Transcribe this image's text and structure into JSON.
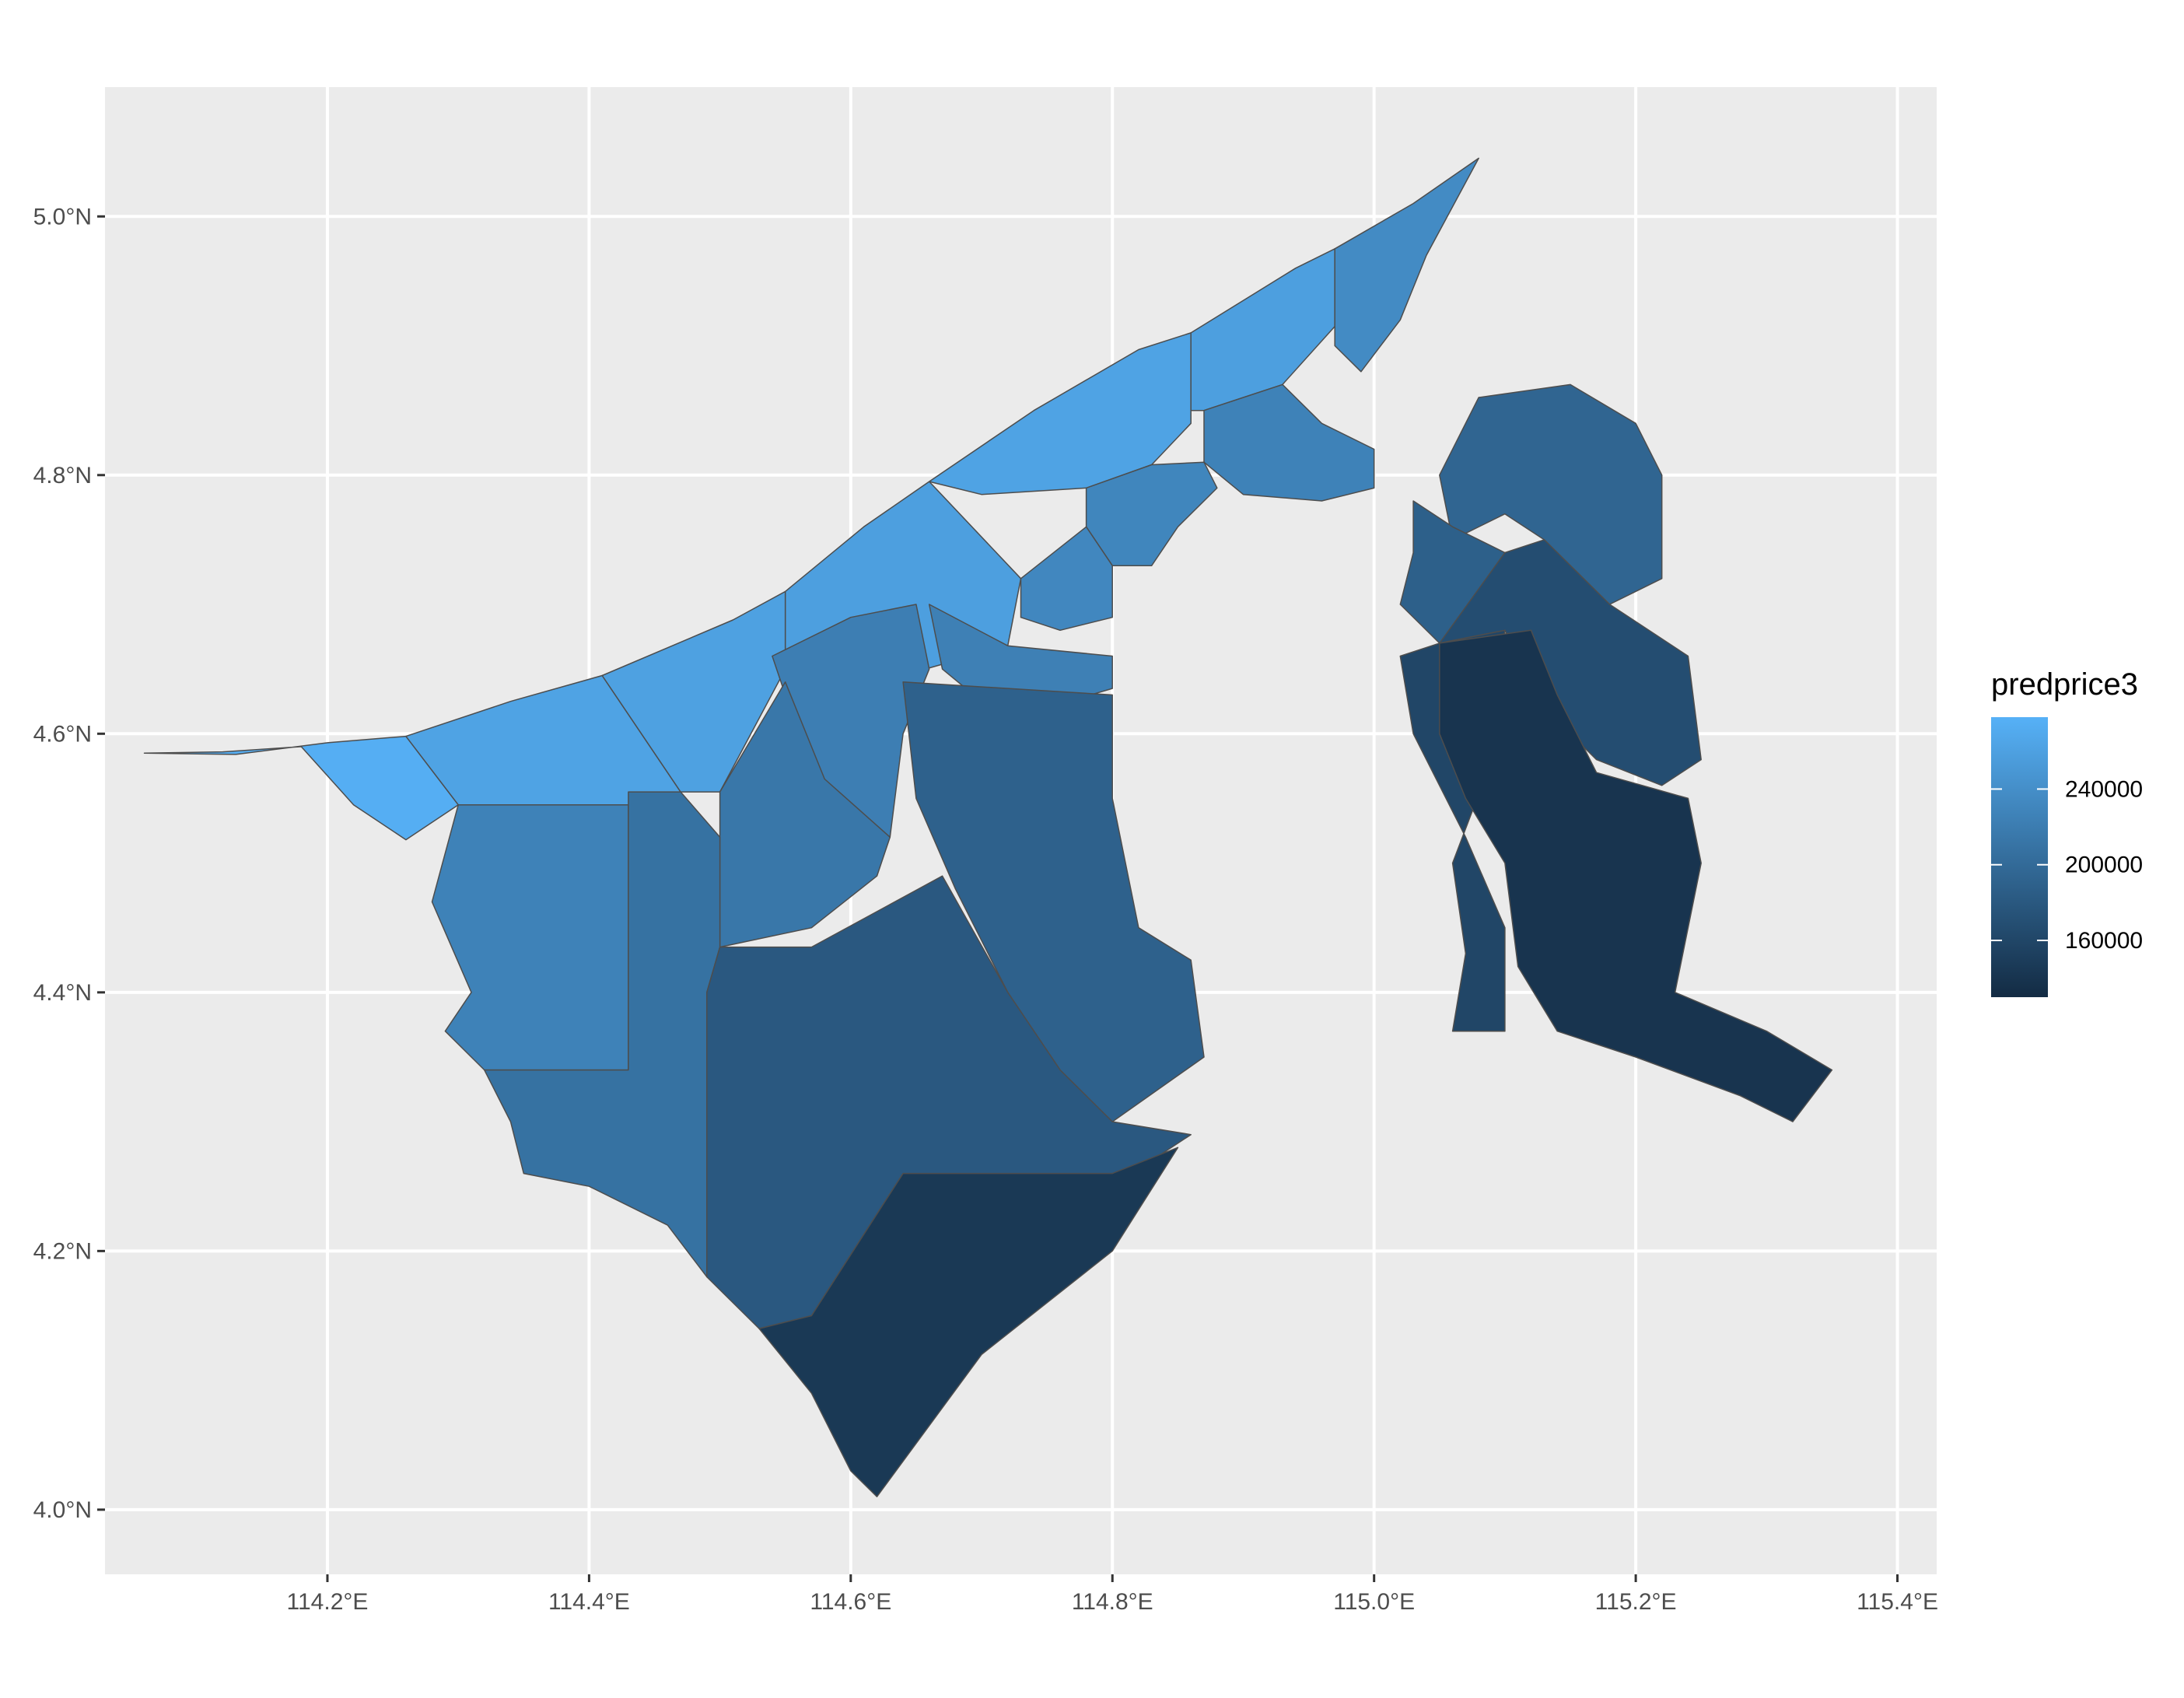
{
  "chart_data": {
    "type": "choropleth",
    "title": "",
    "xlabel": "",
    "ylabel": "",
    "xlim": [
      114.03,
      115.43
    ],
    "ylim": [
      3.95,
      5.1
    ],
    "x_ticks": [
      {
        "value": 114.2,
        "label": "114.2°E"
      },
      {
        "value": 114.4,
        "label": "114.4°E"
      },
      {
        "value": 114.6,
        "label": "114.6°E"
      },
      {
        "value": 114.8,
        "label": "114.8°E"
      },
      {
        "value": 115.0,
        "label": "115.0°E"
      },
      {
        "value": 115.2,
        "label": "115.2°E"
      },
      {
        "value": 115.4,
        "label": "115.4°E"
      }
    ],
    "y_ticks": [
      {
        "value": 4.0,
        "label": "4.0°N"
      },
      {
        "value": 4.2,
        "label": "4.2°N"
      },
      {
        "value": 4.4,
        "label": "4.4°N"
      },
      {
        "value": 4.6,
        "label": "4.6°N"
      },
      {
        "value": 4.8,
        "label": "4.8°N"
      },
      {
        "value": 5.0,
        "label": "5.0°N"
      }
    ],
    "grid": true,
    "panel_background": "#ebebeb",
    "gridline_color": "#ffffff",
    "border_color": "#4d4d4d",
    "legend": {
      "title": "predprice3",
      "placement": "right",
      "range": [
        130000,
        278000
      ],
      "ticks": [
        {
          "value": 160000,
          "label": "160000"
        },
        {
          "value": 200000,
          "label": "200000"
        },
        {
          "value": 240000,
          "label": "240000"
        }
      ],
      "low_color": "#132b43",
      "high_color": "#56b1f7"
    },
    "regions": [
      {
        "value": 275000,
        "coords": [
          [
            114.06,
            4.585
          ],
          [
            114.13,
            4.584
          ],
          [
            114.2,
            4.593
          ],
          [
            114.26,
            4.598
          ],
          [
            114.3,
            4.545
          ],
          [
            114.26,
            4.518
          ],
          [
            114.22,
            4.545
          ],
          [
            114.18,
            4.59
          ],
          [
            114.12,
            4.586
          ]
        ]
      },
      {
        "value": 262000,
        "coords": [
          [
            114.26,
            4.598
          ],
          [
            114.34,
            4.625
          ],
          [
            114.41,
            4.645
          ],
          [
            114.47,
            4.555
          ],
          [
            114.43,
            4.545
          ],
          [
            114.3,
            4.545
          ]
        ]
      },
      {
        "value": 260000,
        "coords": [
          [
            114.41,
            4.645
          ],
          [
            114.51,
            4.688
          ],
          [
            114.55,
            4.71
          ],
          [
            114.55,
            4.65
          ],
          [
            114.5,
            4.555
          ],
          [
            114.47,
            4.555
          ]
        ]
      },
      {
        "value": 258000,
        "coords": [
          [
            114.55,
            4.71
          ],
          [
            114.61,
            4.76
          ],
          [
            114.66,
            4.795
          ],
          [
            114.73,
            4.72
          ],
          [
            114.72,
            4.668
          ],
          [
            114.65,
            4.648
          ],
          [
            114.55,
            4.65
          ]
        ]
      },
      {
        "value": 262000,
        "coords": [
          [
            114.66,
            4.795
          ],
          [
            114.74,
            4.85
          ],
          [
            114.82,
            4.897
          ],
          [
            114.86,
            4.91
          ],
          [
            114.86,
            4.84
          ],
          [
            114.83,
            4.808
          ],
          [
            114.78,
            4.79
          ],
          [
            114.7,
            4.785
          ]
        ]
      },
      {
        "value": 258000,
        "coords": [
          [
            114.86,
            4.91
          ],
          [
            114.94,
            4.96
          ],
          [
            114.97,
            4.975
          ],
          [
            114.97,
            4.915
          ],
          [
            114.93,
            4.87
          ],
          [
            114.87,
            4.85
          ],
          [
            114.86,
            4.85
          ]
        ]
      },
      {
        "value": 236000,
        "coords": [
          [
            114.97,
            4.975
          ],
          [
            115.03,
            5.01
          ],
          [
            115.08,
            5.045
          ],
          [
            115.04,
            4.97
          ],
          [
            115.02,
            4.92
          ],
          [
            114.99,
            4.88
          ],
          [
            114.97,
            4.9
          ]
        ]
      },
      {
        "value": 226000,
        "coords": [
          [
            114.87,
            4.85
          ],
          [
            114.93,
            4.87
          ],
          [
            114.96,
            4.84
          ],
          [
            115.0,
            4.82
          ],
          [
            115.0,
            4.79
          ],
          [
            114.96,
            4.78
          ],
          [
            114.9,
            4.785
          ],
          [
            114.87,
            4.81
          ]
        ]
      },
      {
        "value": 230000,
        "coords": [
          [
            114.78,
            4.79
          ],
          [
            114.83,
            4.808
          ],
          [
            114.87,
            4.81
          ],
          [
            114.88,
            4.79
          ],
          [
            114.85,
            4.76
          ],
          [
            114.83,
            4.73
          ],
          [
            114.8,
            4.73
          ],
          [
            114.78,
            4.76
          ]
        ]
      },
      {
        "value": 232000,
        "coords": [
          [
            114.73,
            4.72
          ],
          [
            114.78,
            4.76
          ],
          [
            114.8,
            4.73
          ],
          [
            114.8,
            4.69
          ],
          [
            114.76,
            4.68
          ],
          [
            114.73,
            4.69
          ]
        ]
      },
      {
        "value": 224000,
        "coords": [
          [
            114.66,
            4.7
          ],
          [
            114.72,
            4.668
          ],
          [
            114.8,
            4.66
          ],
          [
            114.8,
            4.635
          ],
          [
            114.75,
            4.62
          ],
          [
            114.7,
            4.625
          ],
          [
            114.67,
            4.65
          ]
        ]
      },
      {
        "value": 222000,
        "coords": [
          [
            114.54,
            4.66
          ],
          [
            114.6,
            4.69
          ],
          [
            114.65,
            4.7
          ],
          [
            114.66,
            4.65
          ],
          [
            114.64,
            4.6
          ],
          [
            114.63,
            4.52
          ],
          [
            114.58,
            4.56
          ],
          [
            114.55,
            4.63
          ]
        ]
      },
      {
        "value": 214000,
        "coords": [
          [
            114.5,
            4.555
          ],
          [
            114.55,
            4.64
          ],
          [
            114.58,
            4.565
          ],
          [
            114.63,
            4.52
          ],
          [
            114.62,
            4.49
          ],
          [
            114.57,
            4.45
          ],
          [
            114.5,
            4.435
          ]
        ]
      },
      {
        "value": 226000,
        "coords": [
          [
            114.3,
            4.545
          ],
          [
            114.43,
            4.545
          ],
          [
            114.43,
            4.34
          ],
          [
            114.32,
            4.34
          ],
          [
            114.29,
            4.37
          ],
          [
            114.31,
            4.4
          ],
          [
            114.28,
            4.47
          ]
        ]
      },
      {
        "value": 208000,
        "coords": [
          [
            114.43,
            4.555
          ],
          [
            114.47,
            4.555
          ],
          [
            114.5,
            4.52
          ],
          [
            114.5,
            4.435
          ],
          [
            114.49,
            4.4
          ],
          [
            114.49,
            4.18
          ],
          [
            114.46,
            4.22
          ],
          [
            114.4,
            4.25
          ],
          [
            114.35,
            4.26
          ],
          [
            114.34,
            4.3
          ],
          [
            114.32,
            4.34
          ],
          [
            114.43,
            4.34
          ]
        ]
      },
      {
        "value": 190000,
        "coords": [
          [
            114.64,
            4.64
          ],
          [
            114.8,
            4.63
          ],
          [
            114.8,
            4.55
          ],
          [
            114.82,
            4.45
          ],
          [
            114.86,
            4.425
          ],
          [
            114.87,
            4.35
          ],
          [
            114.8,
            4.3
          ],
          [
            114.76,
            4.34
          ],
          [
            114.72,
            4.4
          ],
          [
            114.68,
            4.48
          ],
          [
            114.65,
            4.55
          ]
        ]
      },
      {
        "value": 180000,
        "coords": [
          [
            114.5,
            4.435
          ],
          [
            114.57,
            4.435
          ],
          [
            114.67,
            4.49
          ],
          [
            114.72,
            4.4
          ],
          [
            114.76,
            4.34
          ],
          [
            114.8,
            4.3
          ],
          [
            114.86,
            4.29
          ],
          [
            114.8,
            4.25
          ],
          [
            114.64,
            4.26
          ],
          [
            114.57,
            4.15
          ],
          [
            114.53,
            4.14
          ],
          [
            114.49,
            4.18
          ],
          [
            114.49,
            4.4
          ]
        ]
      },
      {
        "value": 145000,
        "coords": [
          [
            114.53,
            4.14
          ],
          [
            114.57,
            4.15
          ],
          [
            114.64,
            4.26
          ],
          [
            114.8,
            4.26
          ],
          [
            114.85,
            4.28
          ],
          [
            114.8,
            4.2
          ],
          [
            114.7,
            4.12
          ],
          [
            114.62,
            4.01
          ],
          [
            114.6,
            4.03
          ],
          [
            114.57,
            4.09
          ]
        ]
      },
      {
        "value": 194000,
        "coords": [
          [
            115.08,
            4.86
          ],
          [
            115.15,
            4.87
          ],
          [
            115.2,
            4.84
          ],
          [
            115.22,
            4.8
          ],
          [
            115.22,
            4.72
          ],
          [
            115.18,
            4.7
          ],
          [
            115.13,
            4.75
          ],
          [
            115.1,
            4.77
          ],
          [
            115.06,
            4.75
          ],
          [
            115.05,
            4.8
          ]
        ]
      },
      {
        "value": 188000,
        "coords": [
          [
            115.03,
            4.78
          ],
          [
            115.06,
            4.76
          ],
          [
            115.1,
            4.74
          ],
          [
            115.1,
            4.68
          ],
          [
            115.05,
            4.67
          ],
          [
            115.02,
            4.7
          ],
          [
            115.03,
            4.74
          ]
        ]
      },
      {
        "value": 168000,
        "coords": [
          [
            115.1,
            4.74
          ],
          [
            115.13,
            4.75
          ],
          [
            115.18,
            4.7
          ],
          [
            115.24,
            4.66
          ],
          [
            115.25,
            4.58
          ],
          [
            115.22,
            4.56
          ],
          [
            115.17,
            4.58
          ],
          [
            115.13,
            4.62
          ],
          [
            115.1,
            4.68
          ],
          [
            115.05,
            4.67
          ]
        ]
      },
      {
        "value": 160000,
        "coords": [
          [
            115.02,
            4.66
          ],
          [
            115.05,
            4.67
          ],
          [
            115.1,
            4.68
          ],
          [
            115.09,
            4.58
          ],
          [
            115.06,
            4.5
          ],
          [
            115.07,
            4.43
          ],
          [
            115.06,
            4.37
          ],
          [
            115.1,
            4.37
          ],
          [
            115.1,
            4.45
          ],
          [
            115.07,
            4.52
          ],
          [
            115.03,
            4.6
          ]
        ]
      },
      {
        "value": 140000,
        "coords": [
          [
            115.05,
            4.67
          ],
          [
            115.12,
            4.68
          ],
          [
            115.14,
            4.63
          ],
          [
            115.17,
            4.57
          ],
          [
            115.24,
            4.55
          ],
          [
            115.25,
            4.5
          ],
          [
            115.23,
            4.4
          ],
          [
            115.3,
            4.37
          ],
          [
            115.35,
            4.34
          ],
          [
            115.32,
            4.3
          ],
          [
            115.28,
            4.32
          ],
          [
            115.2,
            4.35
          ],
          [
            115.14,
            4.37
          ],
          [
            115.11,
            4.42
          ],
          [
            115.1,
            4.5
          ],
          [
            115.07,
            4.55
          ],
          [
            115.05,
            4.6
          ]
        ]
      }
    ]
  }
}
